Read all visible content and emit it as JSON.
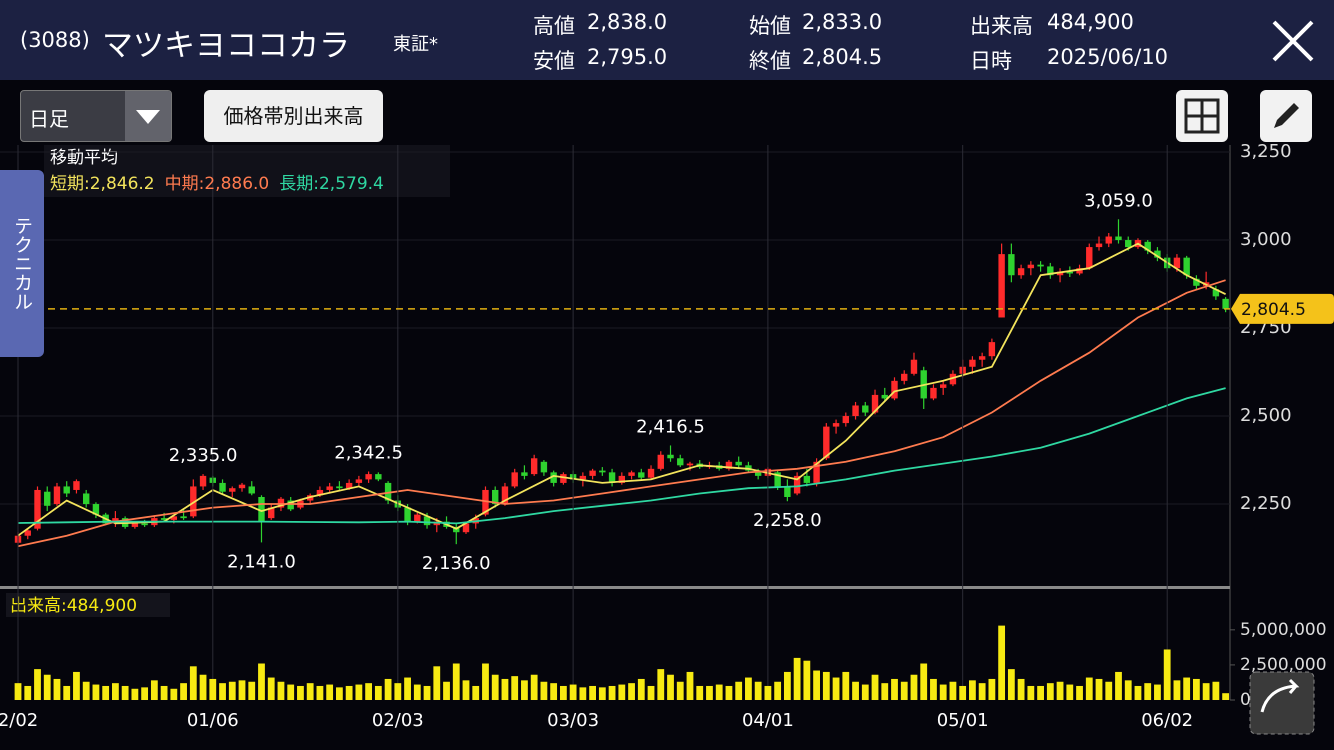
{
  "header": {
    "code": "(3088)",
    "name": "マツキヨココカラ",
    "market": "東証*",
    "stats": [
      {
        "label": "高値",
        "value": "2,838.0"
      },
      {
        "label": "安値",
        "value": "2,795.0"
      },
      {
        "label": "始値",
        "value": "2,833.0"
      },
      {
        "label": "終値",
        "value": "2,804.5"
      },
      {
        "label": "出来高",
        "value": "484,900"
      },
      {
        "label": "日時",
        "value": "2025/06/10"
      }
    ]
  },
  "toolbar": {
    "period": "日足",
    "volume_profile": "価格帯別出来高"
  },
  "side_tab": "テクニカル",
  "chart_data": {
    "type": "candlestick",
    "ma_title": "移動平均",
    "volume_title": "出来高:484,900",
    "up_color": "#ff2b2b",
    "down_color": "#2fd32f",
    "volume_color": "#f7ea12",
    "xlim": [
      -1.85,
      124.45
    ],
    "xticks": [
      {
        "value": 0,
        "label": "2/02"
      },
      {
        "value": 20,
        "label": "01/06"
      },
      {
        "value": 39,
        "label": "02/03"
      },
      {
        "value": 57,
        "label": "03/03"
      },
      {
        "value": 77,
        "label": "04/01"
      },
      {
        "value": 97,
        "label": "05/01"
      },
      {
        "value": 118,
        "label": "06/02"
      }
    ],
    "ylim": [
      2020,
      3270
    ],
    "yticks": [
      {
        "value": 2250,
        "label": "2,250"
      },
      {
        "value": 2500,
        "label": "2,500"
      },
      {
        "value": 2750,
        "label": "2,750"
      },
      {
        "value": 3000,
        "label": "3,000"
      },
      {
        "value": 3250,
        "label": "3,250"
      }
    ],
    "y2lim": [
      0,
      5700000
    ],
    "y2ticks": [
      0,
      {
        "value": 2500000,
        "label": "2,500,000"
      },
      {
        "value": 5000000,
        "label": "5,000,000"
      }
    ],
    "last": {
      "value": 2804.5,
      "label": "2,804.5"
    },
    "ohlc": [
      [
        2140,
        2170,
        2135,
        2160
      ],
      [
        2160,
        2180,
        2150,
        2175
      ],
      [
        2180,
        2300,
        2175,
        2290
      ],
      [
        2285,
        2300,
        2230,
        2245
      ],
      [
        2250,
        2310,
        2245,
        2300
      ],
      [
        2300,
        2315,
        2270,
        2280
      ],
      [
        2290,
        2320,
        2280,
        2315
      ],
      [
        2280,
        2290,
        2240,
        2250
      ],
      [
        2250,
        2255,
        2210,
        2220
      ],
      [
        2220,
        2225,
        2190,
        2195
      ],
      [
        2200,
        2230,
        2185,
        2210
      ],
      [
        2210,
        2215,
        2180,
        2185
      ],
      [
        2185,
        2200,
        2180,
        2195
      ],
      [
        2195,
        2205,
        2185,
        2190
      ],
      [
        2190,
        2215,
        2185,
        2210
      ],
      [
        2210,
        2225,
        2200,
        2205
      ],
      [
        2205,
        2220,
        2195,
        2215
      ],
      [
        2215,
        2235,
        2205,
        2210
      ],
      [
        2215,
        2320,
        2210,
        2300
      ],
      [
        2300,
        2335,
        2290,
        2330
      ],
      [
        2325,
        2330,
        2300,
        2310
      ],
      [
        2310,
        2320,
        2280,
        2285
      ],
      [
        2285,
        2300,
        2270,
        2295
      ],
      [
        2295,
        2310,
        2285,
        2305
      ],
      [
        2300,
        2315,
        2275,
        2280
      ],
      [
        2270,
        2275,
        2141,
        2200
      ],
      [
        2210,
        2250,
        2205,
        2240
      ],
      [
        2240,
        2270,
        2230,
        2265
      ],
      [
        2260,
        2270,
        2230,
        2235
      ],
      [
        2240,
        2265,
        2235,
        2260
      ],
      [
        2260,
        2280,
        2250,
        2275
      ],
      [
        2275,
        2300,
        2270,
        2290
      ],
      [
        2290,
        2310,
        2280,
        2300
      ],
      [
        2300,
        2315,
        2290,
        2295
      ],
      [
        2295,
        2320,
        2290,
        2310
      ],
      [
        2310,
        2330,
        2300,
        2320
      ],
      [
        2320,
        2342.5,
        2310,
        2335
      ],
      [
        2335,
        2340,
        2315,
        2320
      ],
      [
        2310,
        2315,
        2250,
        2260
      ],
      [
        2260,
        2275,
        2230,
        2240
      ],
      [
        2240,
        2250,
        2190,
        2200
      ],
      [
        2200,
        2225,
        2195,
        2220
      ],
      [
        2215,
        2225,
        2180,
        2190
      ],
      [
        2190,
        2210,
        2170,
        2200
      ],
      [
        2200,
        2215,
        2180,
        2185
      ],
      [
        2185,
        2195,
        2136,
        2170
      ],
      [
        2170,
        2200,
        2165,
        2195
      ],
      [
        2195,
        2220,
        2180,
        2210
      ],
      [
        2220,
        2300,
        2215,
        2290
      ],
      [
        2290,
        2300,
        2240,
        2250
      ],
      [
        2250,
        2310,
        2245,
        2300
      ],
      [
        2300,
        2350,
        2295,
        2340
      ],
      [
        2340,
        2360,
        2320,
        2330
      ],
      [
        2335,
        2390,
        2330,
        2380
      ],
      [
        2370,
        2375,
        2330,
        2340
      ],
      [
        2340,
        2345,
        2300,
        2310
      ],
      [
        2310,
        2340,
        2305,
        2335
      ],
      [
        2335,
        2345,
        2310,
        2320
      ],
      [
        2320,
        2340,
        2300,
        2330
      ],
      [
        2330,
        2350,
        2320,
        2345
      ],
      [
        2345,
        2355,
        2330,
        2340
      ],
      [
        2340,
        2350,
        2300,
        2310
      ],
      [
        2310,
        2340,
        2305,
        2330
      ],
      [
        2330,
        2345,
        2320,
        2340
      ],
      [
        2340,
        2350,
        2320,
        2325
      ],
      [
        2325,
        2360,
        2320,
        2350
      ],
      [
        2350,
        2400,
        2345,
        2390
      ],
      [
        2390,
        2416.5,
        2370,
        2380
      ],
      [
        2380,
        2390,
        2355,
        2360
      ],
      [
        2360,
        2370,
        2345,
        2365
      ],
      [
        2365,
        2375,
        2350,
        2355
      ],
      [
        2355,
        2370,
        2350,
        2360
      ],
      [
        2360,
        2370,
        2345,
        2350
      ],
      [
        2350,
        2375,
        2345,
        2370
      ],
      [
        2370,
        2385,
        2350,
        2360
      ],
      [
        2360,
        2370,
        2340,
        2345
      ],
      [
        2345,
        2350,
        2320,
        2330
      ],
      [
        2330,
        2355,
        2325,
        2350
      ],
      [
        2340,
        2345,
        2290,
        2300
      ],
      [
        2300,
        2320,
        2258,
        2270
      ],
      [
        2280,
        2340,
        2275,
        2330
      ],
      [
        2330,
        2350,
        2300,
        2310
      ],
      [
        2310,
        2380,
        2300,
        2370
      ],
      [
        2380,
        2480,
        2375,
        2470
      ],
      [
        2470,
        2490,
        2450,
        2480
      ],
      [
        2480,
        2510,
        2470,
        2500
      ],
      [
        2500,
        2540,
        2490,
        2530
      ],
      [
        2530,
        2540,
        2500,
        2510
      ],
      [
        2510,
        2575,
        2505,
        2560
      ],
      [
        2560,
        2580,
        2540,
        2550
      ],
      [
        2550,
        2610,
        2545,
        2600
      ],
      [
        2600,
        2630,
        2590,
        2620
      ],
      [
        2620,
        2680,
        2615,
        2660
      ],
      [
        2630,
        2640,
        2520,
        2550
      ],
      [
        2550,
        2590,
        2545,
        2580
      ],
      [
        2580,
        2600,
        2560,
        2590
      ],
      [
        2590,
        2630,
        2585,
        2620
      ],
      [
        2620,
        2660,
        2610,
        2640
      ],
      [
        2640,
        2670,
        2620,
        2660
      ],
      [
        2660,
        2680,
        2640,
        2670
      ],
      [
        2670,
        2720,
        2660,
        2710
      ],
      [
        2780,
        2990,
        2780,
        2960
      ],
      [
        2960,
        2990,
        2880,
        2900
      ],
      [
        2900,
        2930,
        2890,
        2920
      ],
      [
        2920,
        2940,
        2900,
        2930
      ],
      [
        2930,
        2940,
        2910,
        2925
      ],
      [
        2925,
        2935,
        2890,
        2900
      ],
      [
        2900,
        2920,
        2880,
        2910
      ],
      [
        2910,
        2925,
        2895,
        2905
      ],
      [
        2905,
        2930,
        2900,
        2920
      ],
      [
        2920,
        2990,
        2915,
        2980
      ],
      [
        2980,
        3010,
        2970,
        2990
      ],
      [
        2990,
        3020,
        2980,
        3010
      ],
      [
        3010,
        3059,
        2990,
        3000
      ],
      [
        3000,
        3010,
        2970,
        2980
      ],
      [
        2980,
        3005,
        2975,
        3000
      ],
      [
        2995,
        3000,
        2960,
        2970
      ],
      [
        2970,
        2980,
        2940,
        2950
      ],
      [
        2950,
        2960,
        2910,
        2920
      ],
      [
        2920,
        2960,
        2910,
        2950
      ],
      [
        2950,
        2955,
        2890,
        2900
      ],
      [
        2890,
        2900,
        2860,
        2870
      ],
      [
        2870,
        2910,
        2860,
        2880
      ],
      [
        2860,
        2870,
        2830,
        2840
      ],
      [
        2833,
        2838,
        2795,
        2804.5
      ]
    ],
    "volume": [
      1200000,
      1000000,
      2200000,
      1800000,
      1500000,
      1000000,
      2000000,
      1300000,
      1100000,
      1000000,
      1200000,
      1000000,
      800000,
      900000,
      1400000,
      1000000,
      800000,
      1200000,
      2400000,
      1800000,
      1500000,
      1200000,
      1300000,
      1400000,
      1300000,
      2600000,
      1600000,
      1300000,
      1100000,
      1000000,
      1200000,
      1000000,
      1100000,
      900000,
      1000000,
      1100000,
      1200000,
      1000000,
      1500000,
      1200000,
      1600000,
      1100000,
      1000000,
      2400000,
      1300000,
      2600000,
      1400000,
      1000000,
      2600000,
      1800000,
      1500000,
      1700000,
      1400000,
      1800000,
      1300000,
      1200000,
      1000000,
      1100000,
      900000,
      1000000,
      900000,
      1000000,
      1100000,
      1200000,
      1500000,
      1000000,
      2200000,
      1800000,
      1300000,
      2000000,
      1000000,
      1000000,
      1100000,
      1000000,
      1300000,
      1600000,
      1300000,
      1000000,
      1300000,
      2000000,
      3000000,
      2800000,
      2100000,
      2000000,
      1600000,
      2000000,
      1300000,
      1100000,
      1800000,
      1200000,
      1500000,
      1300000,
      1800000,
      2600000,
      1500000,
      1100000,
      1300000,
      1000000,
      1400000,
      1200000,
      1500000,
      5300000,
      2200000,
      1500000,
      1000000,
      1000000,
      1200000,
      1300000,
      1100000,
      1000000,
      1600000,
      1500000,
      1300000,
      2000000,
      1400000,
      1000000,
      1200000,
      1100000,
      3600000,
      1400000,
      1600000,
      1500000,
      1200000,
      1300000,
      484900
    ],
    "ma_x": [
      0,
      5,
      10,
      15,
      20,
      25,
      30,
      35,
      40,
      45,
      50,
      55,
      60,
      65,
      70,
      75,
      80,
      85,
      90,
      95,
      100,
      105,
      110,
      115,
      120,
      124
    ],
    "ma_series": [
      {
        "label": "短期:2,846.2",
        "color": "#f3e45c",
        "values": [
          2160,
          2260,
          2195,
          2200,
          2290,
          2230,
          2270,
          2300,
          2240,
          2180,
          2260,
          2330,
          2310,
          2320,
          2360,
          2350,
          2320,
          2430,
          2570,
          2600,
          2640,
          2900,
          2920,
          2990,
          2900,
          2846.2
        ]
      },
      {
        "label": "中期:2,886.0",
        "color": "#ff7b4f",
        "values": [
          2130,
          2160,
          2200,
          2220,
          2240,
          2250,
          2250,
          2270,
          2290,
          2270,
          2250,
          2260,
          2280,
          2300,
          2320,
          2340,
          2350,
          2370,
          2400,
          2440,
          2510,
          2600,
          2680,
          2780,
          2850,
          2886.0
        ]
      },
      {
        "label": "長期:2,579.4",
        "color": "#2fd8a2",
        "values": [
          2196,
          2198,
          2200,
          2200,
          2200,
          2200,
          2199,
          2198,
          2200,
          2195,
          2210,
          2230,
          2245,
          2260,
          2280,
          2295,
          2300,
          2320,
          2345,
          2365,
          2385,
          2410,
          2450,
          2500,
          2550,
          2579.4
        ]
      }
    ],
    "annotations": [
      {
        "x": 19,
        "value": 2335,
        "label": "2,335.0",
        "position": "above"
      },
      {
        "x": 25,
        "value": 2141,
        "label": "2,141.0",
        "position": "below"
      },
      {
        "x": 36,
        "value": 2342.5,
        "label": "2,342.5",
        "position": "above"
      },
      {
        "x": 45,
        "value": 2136,
        "label": "2,136.0",
        "position": "below"
      },
      {
        "x": 67,
        "value": 2416.5,
        "label": "2,416.5",
        "position": "above"
      },
      {
        "x": 79,
        "value": 2258,
        "label": "2,258.0",
        "position": "below"
      },
      {
        "x": 113,
        "value": 3059,
        "label": "3,059.0",
        "position": "above"
      }
    ]
  }
}
